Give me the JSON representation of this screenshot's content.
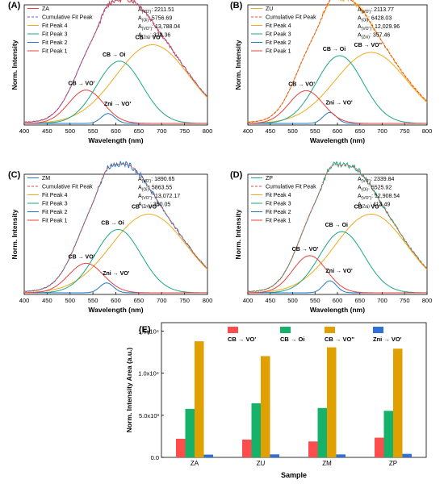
{
  "figure_colors": {
    "fit1": "#e8403d",
    "fit2": "#1f78c8",
    "fit3": "#1aa883",
    "fit4": "#f2aa1b",
    "cumulative": "#6a5acd",
    "raw_line": "#404040"
  },
  "chart_data": [
    {
      "panel": "(A)",
      "type": "line",
      "xlabel": "Wavelength (nm)",
      "ylabel": "Norm. Intensity",
      "xlim": [
        400,
        800
      ],
      "x_ticks": [
        "400",
        "450",
        "500",
        "550",
        "600",
        "650",
        "700",
        "750",
        "800"
      ],
      "legend": {
        "raw": "ZA",
        "cumulative": "Cumulative Fit Peak",
        "fit4": "Fit Peak 4",
        "fit3": "Fit Peak 3",
        "fit2": "Fit Peak 2",
        "fit1": "Fit Peak 1"
      },
      "areas": [
        {
          "sub": "(VO')",
          "value": "2211.51"
        },
        {
          "sub": "(Oi)",
          "value": "5756.69"
        },
        {
          "sub": "(VO'')",
          "value": "13,788.04"
        },
        {
          "sub": "(Zni)",
          "value": "328.36"
        }
      ],
      "annotations": {
        "p1": "CB → VO'",
        "p3": "CB → Oi",
        "p4": "CB → VO''",
        "p2": "Zni → VO'"
      },
      "peaks": [
        {
          "name": "Fit Peak 1",
          "center": 535,
          "height": 0.305,
          "width": 38
        },
        {
          "name": "Fit Peak 2",
          "center": 583,
          "height": 0.09,
          "width": 15
        },
        {
          "name": "Fit Peak 3",
          "center": 608,
          "height": 0.57,
          "width": 50
        },
        {
          "name": "Fit Peak 4",
          "center": 680,
          "height": 0.72,
          "width": 80
        }
      ]
    },
    {
      "panel": "(B)",
      "type": "line",
      "xlabel": "Wavelength (nm)",
      "ylabel": "Norm. Intensity",
      "xlim": [
        400,
        800
      ],
      "x_ticks": [
        "400",
        "450",
        "500",
        "550",
        "600",
        "650",
        "700",
        "750",
        "800"
      ],
      "legend": {
        "raw": "ZU",
        "cumulative": "Cumulative Fit Peak",
        "fit4": "Fit Peak 4",
        "fit3": "Fit Peak 3",
        "fit2": "Fit Peak 2",
        "fit1": "Fit Peak 1"
      },
      "areas": [
        {
          "sub": "(VO')",
          "value": "2113.77"
        },
        {
          "sub": "(Oi)",
          "value": "6428.03"
        },
        {
          "sub": "(VO'')",
          "value": "12,029.96"
        },
        {
          "sub": "(Zni)",
          "value": "357.46"
        }
      ],
      "annotations": {
        "p1": "CB → VO'",
        "p3": "CB → Oi",
        "p4": "CB → VO''",
        "p2": "Zni → VO'"
      },
      "peaks": [
        {
          "name": "Fit Peak 1",
          "center": 530,
          "height": 0.3,
          "width": 38
        },
        {
          "name": "Fit Peak 2",
          "center": 583,
          "height": 0.1,
          "width": 15
        },
        {
          "name": "Fit Peak 3",
          "center": 605,
          "height": 0.62,
          "width": 52
        },
        {
          "name": "Fit Peak 4",
          "center": 675,
          "height": 0.65,
          "width": 80
        }
      ]
    },
    {
      "panel": "(C)",
      "type": "line",
      "xlabel": "Wavelength (nm)",
      "ylabel": "Norm. Intensity",
      "xlim": [
        400,
        800
      ],
      "x_ticks": [
        "400",
        "450",
        "500",
        "550",
        "600",
        "650",
        "700",
        "750",
        "800"
      ],
      "legend": {
        "raw": "ZM",
        "cumulative": "Cumulative Fit Peak",
        "fit4": "Fit Peak 4",
        "fit3": "Fit Peak 3",
        "fit2": "Fit Peak 2",
        "fit1": "Fit Peak 1"
      },
      "areas": [
        {
          "sub": "(VO')",
          "value": "1890.65"
        },
        {
          "sub": "(Oi)",
          "value": "5863.55"
        },
        {
          "sub": "(VO'')",
          "value": "13,072.17"
        },
        {
          "sub": "(Zni)",
          "value": "350.05"
        }
      ],
      "annotations": {
        "p1": "CB → VO'",
        "p3": "CB → Oi",
        "p4": "CB → VO''",
        "p2": "Zni → VO'"
      },
      "peaks": [
        {
          "name": "Fit Peak 1",
          "center": 535,
          "height": 0.27,
          "width": 38
        },
        {
          "name": "Fit Peak 2",
          "center": 580,
          "height": 0.09,
          "width": 15
        },
        {
          "name": "Fit Peak 3",
          "center": 605,
          "height": 0.58,
          "width": 50
        },
        {
          "name": "Fit Peak 4",
          "center": 672,
          "height": 0.72,
          "width": 82
        }
      ]
    },
    {
      "panel": "(D)",
      "type": "line",
      "xlabel": "Wavelength (nm)",
      "ylabel": "Norm. Intensity",
      "xlim": [
        400,
        800
      ],
      "x_ticks": [
        "400",
        "450",
        "500",
        "550",
        "600",
        "650",
        "700",
        "750",
        "800"
      ],
      "legend": {
        "raw": "ZP",
        "cumulative": "Cumulative Fit Peak",
        "fit4": "Fit Peak 4",
        "fit3": "Fit Peak 3",
        "fit2": "Fit Peak 2",
        "fit1": "Fit Peak 1"
      },
      "areas": [
        {
          "sub": "(VO')",
          "value": "2339.84"
        },
        {
          "sub": "(Oi)",
          "value": "5525.92"
        },
        {
          "sub": "(VO'')",
          "value": "12,908.54"
        },
        {
          "sub": "(Zni)",
          "value": "413.49"
        }
      ],
      "annotations": {
        "p1": "CB → VO'",
        "p3": "CB → Oi",
        "p4": "CB → VO''",
        "p2": "Zni → VO'"
      },
      "peaks": [
        {
          "name": "Fit Peak 1",
          "center": 538,
          "height": 0.34,
          "width": 38
        },
        {
          "name": "Fit Peak 2",
          "center": 583,
          "height": 0.11,
          "width": 15
        },
        {
          "name": "Fit Peak 3",
          "center": 610,
          "height": 0.56,
          "width": 50
        },
        {
          "name": "Fit Peak 4",
          "center": 675,
          "height": 0.72,
          "width": 80
        }
      ]
    },
    {
      "panel": "(E)",
      "type": "bar",
      "xlabel": "Sample",
      "ylabel": "Norm. Intensity Area (a.u.)",
      "ylim": [
        0,
        16000
      ],
      "y_ticks": [
        {
          "value": 0,
          "label": "0.0"
        },
        {
          "value": 5000,
          "label": "5.0x10³"
        },
        {
          "value": 10000,
          "label": "1.0x10⁴"
        },
        {
          "value": 15000,
          "label": "1.5x10⁴"
        }
      ],
      "categories": [
        "ZA",
        "ZU",
        "ZM",
        "ZP"
      ],
      "series": [
        {
          "name": "CB → VO'",
          "color": "#ff4d4d",
          "values": [
            2211.51,
            2113.77,
            1890.65,
            2339.84
          ]
        },
        {
          "name": "CB → Oi",
          "color": "#17b26a",
          "values": [
            5756.69,
            6428.03,
            5863.55,
            5525.92
          ]
        },
        {
          "name": "CB → VO''",
          "color": "#e0a000",
          "values": [
            13788.04,
            12029.96,
            13072.17,
            12908.54
          ]
        },
        {
          "name": "Zni → VO'",
          "color": "#2f6fd6",
          "values": [
            328.36,
            357.46,
            350.05,
            413.49
          ]
        }
      ]
    }
  ]
}
